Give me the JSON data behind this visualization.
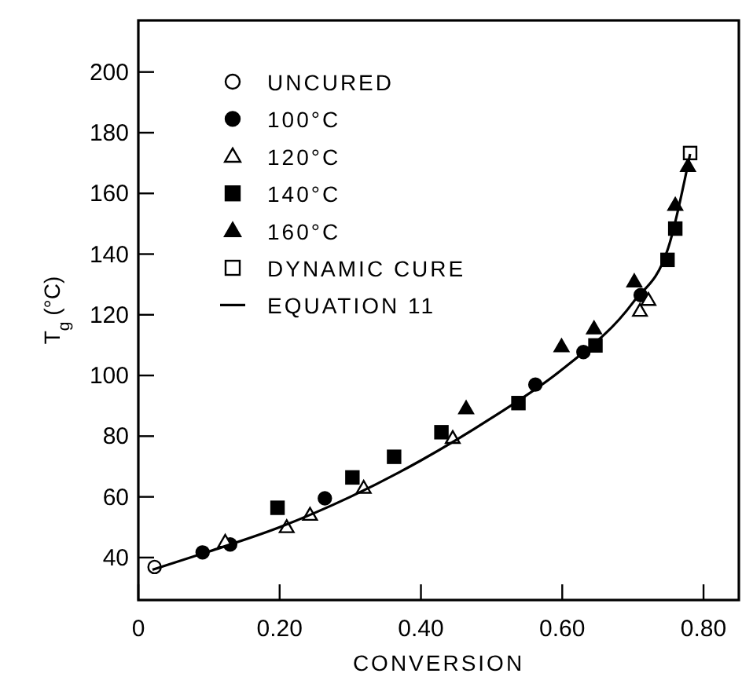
{
  "chart_data": {
    "type": "scatter",
    "xlabel": "CONVERSION",
    "ylabel": "T$_{g}$ (°C)",
    "xlim": [
      0,
      0.85
    ],
    "ylim": [
      26,
      217
    ],
    "xticks": [
      0,
      {
        "value": 0.2,
        "label": "0.20"
      },
      {
        "value": 0.4,
        "label": "0.40"
      },
      {
        "value": 0.6,
        "label": "0.60"
      },
      {
        "value": 0.8,
        "label": "0.80"
      }
    ],
    "yticks": [
      40,
      60,
      80,
      100,
      120,
      140,
      160,
      180,
      200
    ],
    "legend": "top left",
    "grid": false,
    "series": [
      {
        "name": "UNCURED",
        "color": "#ffffff",
        "marker": "circle",
        "x": [
          0.023
        ],
        "values": [
          36.9
        ]
      },
      {
        "name": "100°C",
        "color": "#000000",
        "marker": "circle",
        "x": [
          0.091,
          0.13,
          0.264,
          0.562,
          0.63,
          0.711
        ],
        "values": [
          41.7,
          44.3,
          59.5,
          97,
          107.7,
          126.5
        ]
      },
      {
        "name": "120°C",
        "color": "#ffffff",
        "marker": "triangle",
        "x": [
          0.123,
          0.21,
          0.243,
          0.319,
          0.445,
          0.71,
          0.722
        ],
        "values": [
          45.2,
          50,
          54.1,
          63,
          79.4,
          121.3,
          124.9
        ]
      },
      {
        "name": "140°C",
        "color": "#000000",
        "marker": "square",
        "x": [
          0.197,
          0.303,
          0.362,
          0.429,
          0.538,
          0.647,
          0.749,
          0.76
        ],
        "values": [
          56.4,
          66.4,
          73.2,
          81.3,
          90.9,
          109.9,
          138.1,
          148.4
        ]
      },
      {
        "name": "160°C",
        "color": "#000000",
        "marker": "triangle",
        "x": [
          0.464,
          0.599,
          0.645,
          0.702,
          0.76,
          0.778
        ],
        "values": [
          89.2,
          109.6,
          115.5,
          131,
          156.2,
          169
        ]
      },
      {
        "name": "DYNAMIC CURE",
        "color": "#ffffff",
        "marker": "square",
        "x": [
          0.781
        ],
        "values": [
          173.3
        ]
      },
      {
        "name": "EQUATION 11",
        "type": "line",
        "color": "#000000",
        "marker": "none",
        "x": [
          0.02,
          0.1,
          0.2,
          0.3,
          0.4,
          0.5,
          0.6,
          0.7,
          0.75,
          0.781
        ],
        "values": [
          36,
          42,
          50,
          60,
          72,
          86,
          102,
          124,
          142,
          173
        ]
      }
    ]
  }
}
